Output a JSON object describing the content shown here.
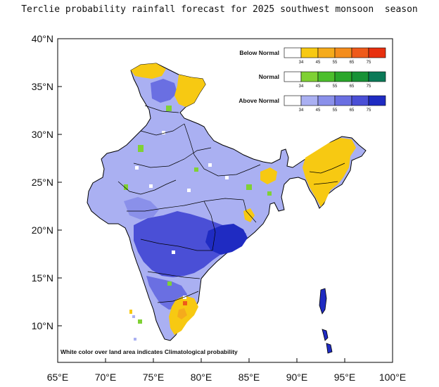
{
  "title": "Terclie probability rainfall forecast for 2025 southwest monsoon  season",
  "axes": {
    "x_ticks": [
      "65°E",
      "70°E",
      "75°E",
      "80°E",
      "85°E",
      "90°E",
      "95°E",
      "100°E"
    ],
    "y_ticks": [
      "40°N",
      "35°N",
      "30°N",
      "25°N",
      "20°N",
      "15°N",
      "10°N"
    ]
  },
  "legend": {
    "rows": [
      {
        "label": "Below Normal",
        "ticks": [
          "34",
          "45",
          "55",
          "65",
          "75"
        ],
        "colors": [
          "#ffffff",
          "#f7c912",
          "#f5ab1c",
          "#f48d1d",
          "#ef5a1a",
          "#e8300f"
        ]
      },
      {
        "label": "Normal",
        "ticks": [
          "34",
          "45",
          "55",
          "65",
          "75"
        ],
        "colors": [
          "#ffffff",
          "#7fd134",
          "#4cbf2c",
          "#2aa62a",
          "#189236",
          "#0b7a58"
        ]
      },
      {
        "label": "Above Normal",
        "ticks": [
          "34",
          "45",
          "55",
          "65",
          "75"
        ],
        "colors": [
          "#ffffff",
          "#aab0f2",
          "#8a90ea",
          "#6a6fe2",
          "#4a4fd6",
          "#1f2bc2"
        ]
      }
    ]
  },
  "note": "White color over land area indicates Climatological probability",
  "colors": {
    "above_light": "#aab0f2",
    "above_mid": "#8a90ea",
    "above_dark": "#4a4fd6",
    "above_darkest": "#1f2bc2",
    "below_yellow": "#f7c912",
    "below_orange": "#f5ab1c",
    "normal_green": "#7fd134",
    "border": "#000000"
  }
}
